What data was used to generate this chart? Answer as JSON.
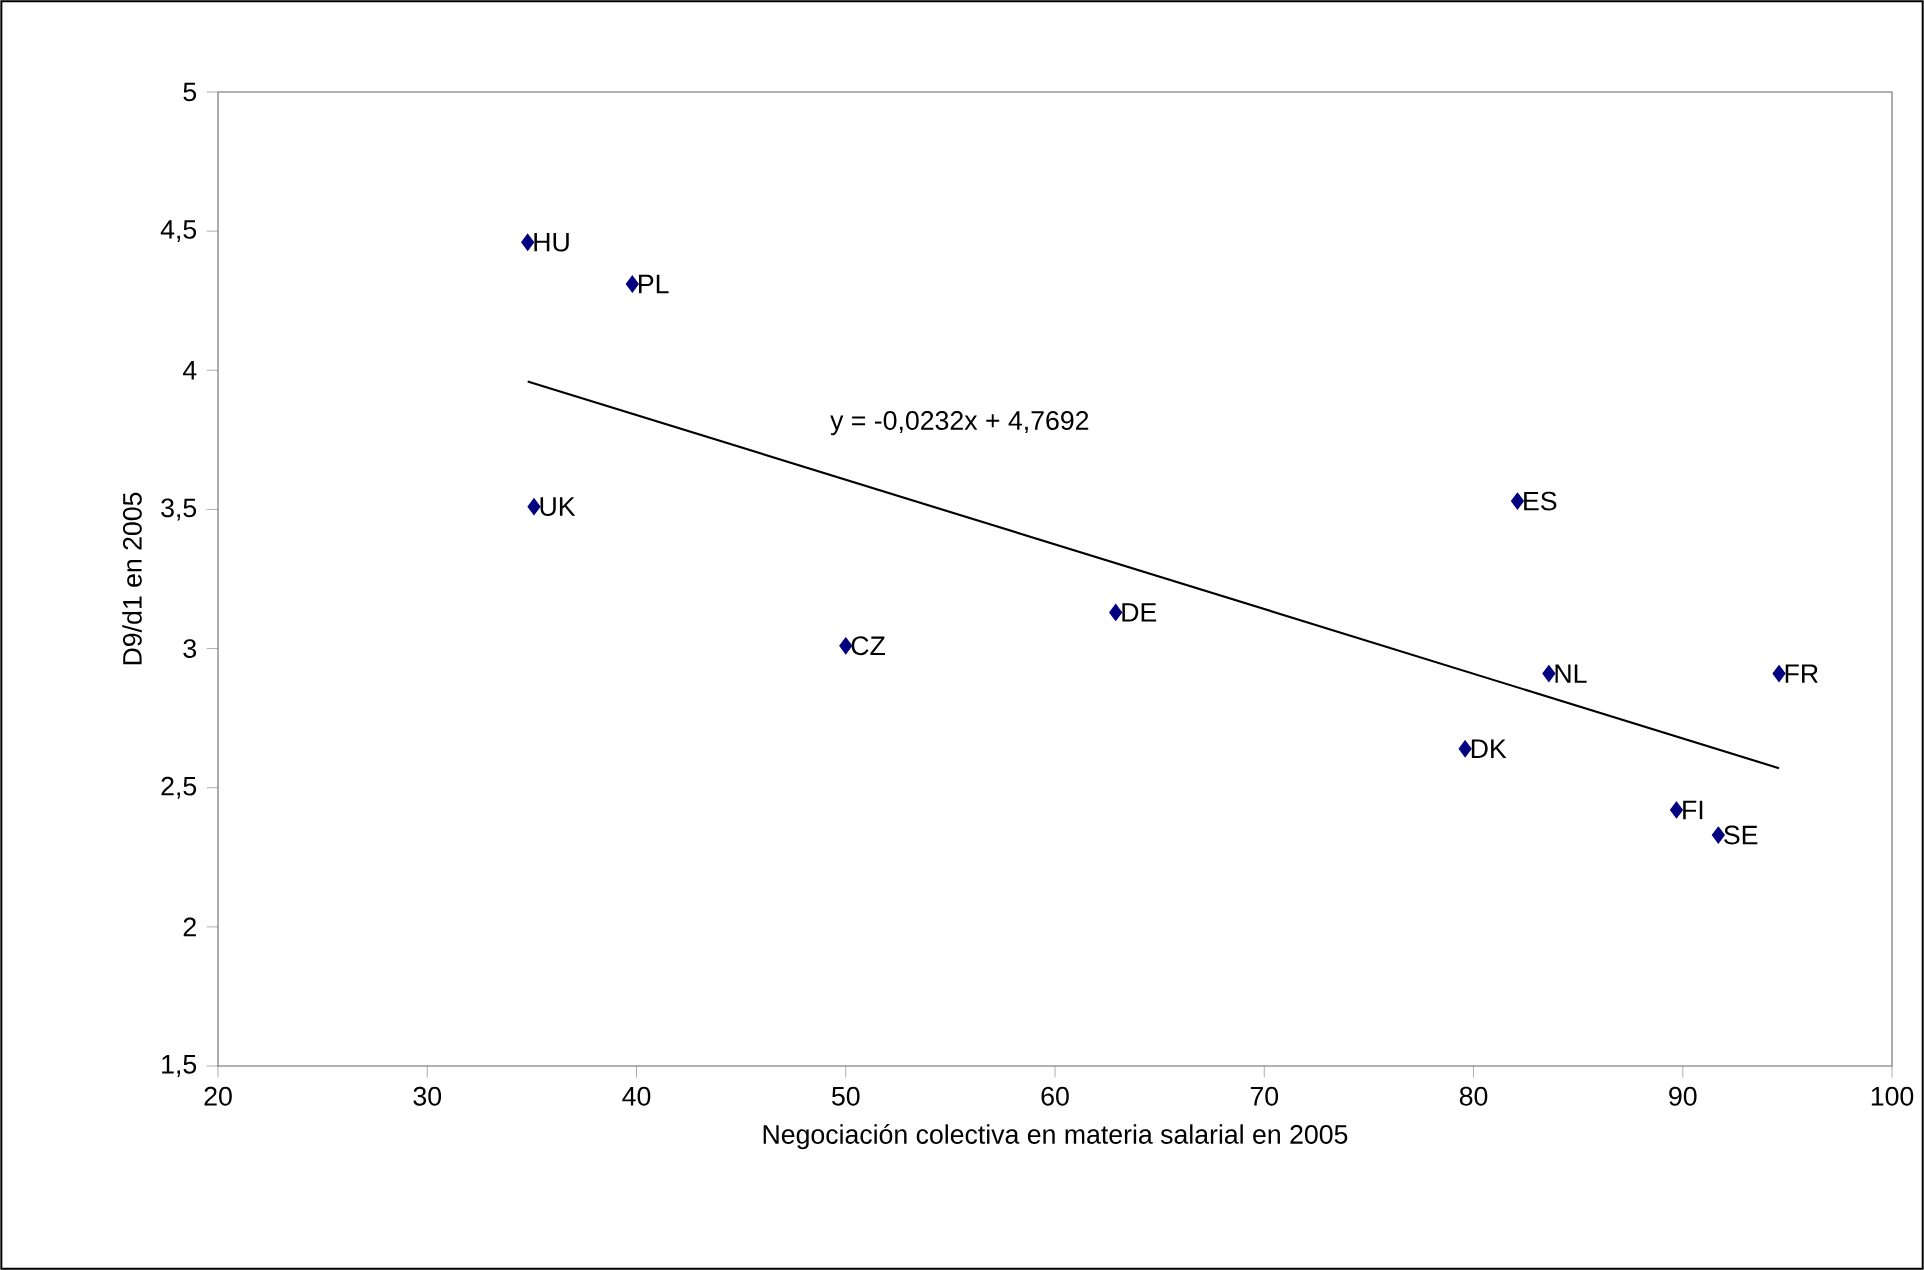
{
  "chart_data": {
    "type": "scatter",
    "xlabel": "Negociación colectiva en materia salarial en 2005",
    "ylabel": "D9/d1 en 2005",
    "xlim": [
      20,
      100
    ],
    "xticks": [
      20,
      30,
      40,
      50,
      60,
      70,
      80,
      90,
      100
    ],
    "ylim": [
      1.5,
      5
    ],
    "yticks": [
      {
        "value": 1.5,
        "label": "1,5"
      },
      2,
      {
        "value": 2.5,
        "label": "2,5"
      },
      3,
      {
        "value": 3.5,
        "label": "3,5"
      },
      4,
      {
        "value": 4.5,
        "label": "4,5"
      },
      5
    ],
    "grid": false,
    "legend": false,
    "marker": "diamond",
    "series": [
      {
        "color": "#000080",
        "x": [
          34.8,
          39.8,
          35.1,
          50.0,
          62.9,
          82.1,
          83.6,
          94.6,
          79.6,
          89.7,
          91.7
        ],
        "values": [
          4.46,
          4.31,
          3.51,
          3.01,
          3.13,
          3.53,
          2.91,
          2.91,
          2.64,
          2.42,
          2.33
        ]
      },
      {
        "type": "line",
        "color": "#000000",
        "marker": "none",
        "x": [
          34.8,
          94.6
        ],
        "values": [
          3.96,
          2.57
        ]
      }
    ],
    "annotations": [
      {
        "text": "HU",
        "x": 34.8,
        "y": 4.46
      },
      {
        "text": "PL",
        "x": 39.8,
        "y": 4.31
      },
      {
        "text": "UK",
        "x": 35.1,
        "y": 3.51
      },
      {
        "text": "CZ",
        "x": 50.0,
        "y": 3.01
      },
      {
        "text": "DE",
        "x": 62.9,
        "y": 3.13
      },
      {
        "text": "ES",
        "x": 82.1,
        "y": 3.53
      },
      {
        "text": "NL",
        "x": 83.6,
        "y": 2.91
      },
      {
        "text": "FR",
        "x": 94.6,
        "y": 2.91
      },
      {
        "text": "DK",
        "x": 79.6,
        "y": 2.64
      },
      {
        "text": "FI",
        "x": 89.7,
        "y": 2.42
      },
      {
        "text": "SE",
        "x": 91.7,
        "y": 2.33
      },
      "y = -0,0232x + 4,7692"
    ]
  }
}
